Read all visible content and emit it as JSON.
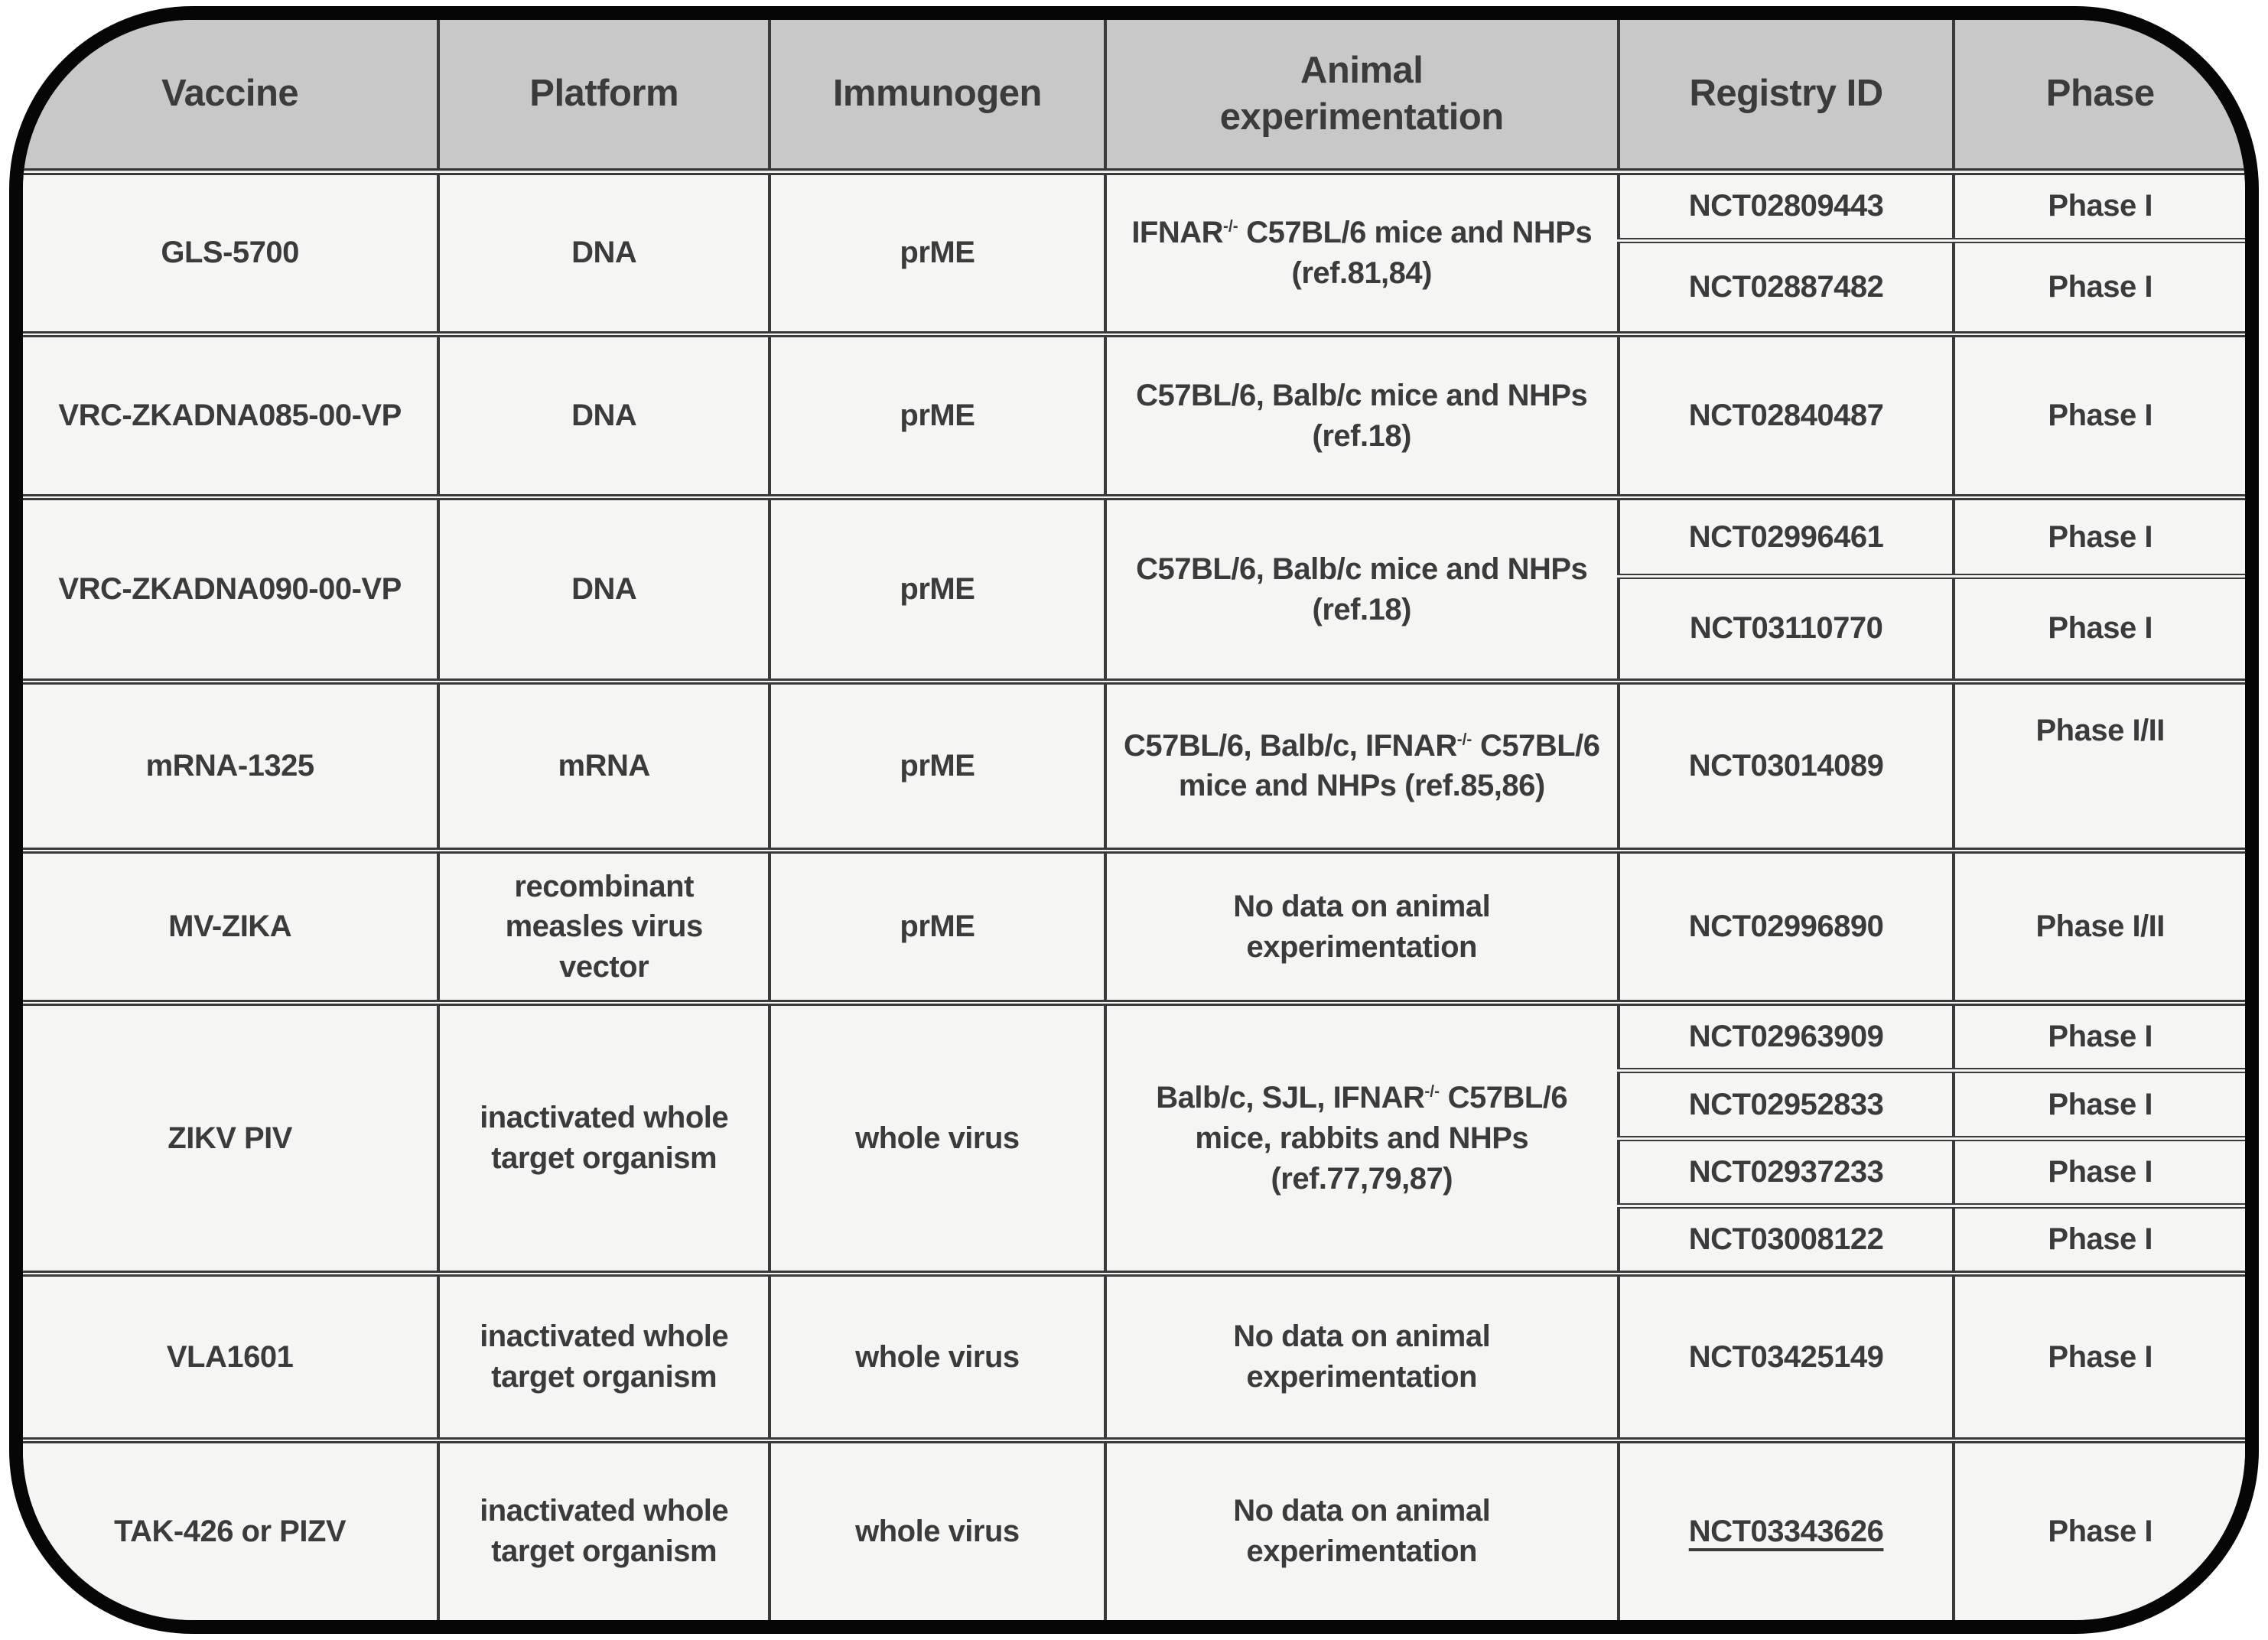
{
  "colors": {
    "frame_border": "#060606",
    "header_bg": "#c8c8c8",
    "body_bg": "#f5f5f4",
    "text": "#3b3b3b",
    "grid_line": "#3a3a3a"
  },
  "table": {
    "columns": [
      "Vaccine",
      "Platform",
      "Immunogen",
      "Animal\nexperimentation",
      "Registry ID",
      "Phase"
    ],
    "rows": [
      {
        "vaccine": "GLS-5700",
        "platform": "DNA",
        "immunogen": "prME",
        "animal": {
          "pre": "IFNAR",
          "sup": "-/-",
          "post": " C57BL/6 mice and NHPs (ref.81,84)"
        },
        "trials": [
          {
            "registry_id": "NCT02809443",
            "phase": "Phase I",
            "underlined": false
          },
          {
            "registry_id": "NCT02887482",
            "phase": "Phase I",
            "underlined": false
          }
        ]
      },
      {
        "vaccine": "VRC-ZKADNA085-00-VP",
        "platform": "DNA",
        "immunogen": "prME",
        "animal": {
          "pre": "C57BL/6, Balb/c mice and NHPs (ref.18)",
          "sup": "",
          "post": ""
        },
        "trials": [
          {
            "registry_id": "NCT02840487",
            "phase": "Phase I",
            "underlined": false
          }
        ]
      },
      {
        "vaccine": "VRC-ZKADNA090-00-VP",
        "platform": "DNA",
        "immunogen": "prME",
        "animal": {
          "pre": "C57BL/6, Balb/c mice and NHPs (ref.18)",
          "sup": "",
          "post": ""
        },
        "trials": [
          {
            "registry_id": "NCT02996461",
            "phase": "Phase I",
            "underlined": false
          },
          {
            "registry_id": "NCT03110770",
            "phase": "Phase I",
            "underlined": false
          }
        ]
      },
      {
        "vaccine": "mRNA-1325",
        "platform": "mRNA",
        "immunogen": "prME",
        "animal": {
          "pre": "C57BL/6, Balb/c, IFNAR",
          "sup": "-/-",
          "post": " C57BL/6 mice and NHPs (ref.85,86)"
        },
        "trials": [
          {
            "registry_id": "NCT03014089",
            "phase": "Phase I/II",
            "underlined": false
          }
        ]
      },
      {
        "vaccine": "MV-ZIKA",
        "platform": "recombinant measles virus vector",
        "immunogen": "prME",
        "animal": {
          "pre": "No data on animal experimentation",
          "sup": "",
          "post": ""
        },
        "trials": [
          {
            "registry_id": "NCT02996890",
            "phase": "Phase I/II",
            "underlined": false
          }
        ]
      },
      {
        "vaccine": "ZIKV PIV",
        "platform": "inactivated whole target organism",
        "immunogen": "whole virus",
        "animal": {
          "pre": "Balb/c, SJL, IFNAR",
          "sup": "-/-",
          "post": " C57BL/6 mice, rabbits and NHPs (ref.77,79,87)"
        },
        "trials": [
          {
            "registry_id": "NCT02963909",
            "phase": "Phase I",
            "underlined": false
          },
          {
            "registry_id": "NCT02952833",
            "phase": "Phase I",
            "underlined": false
          },
          {
            "registry_id": "NCT02937233",
            "phase": "Phase I",
            "underlined": false
          },
          {
            "registry_id": "NCT03008122",
            "phase": "Phase I",
            "underlined": false
          }
        ]
      },
      {
        "vaccine": "VLA1601",
        "platform": "inactivated whole target organism",
        "immunogen": "whole virus",
        "animal": {
          "pre": "No data on animal experimentation",
          "sup": "",
          "post": ""
        },
        "trials": [
          {
            "registry_id": "NCT03425149",
            "phase": "Phase I",
            "underlined": false
          }
        ]
      },
      {
        "vaccine": "TAK-426 or PIZV",
        "platform": "inactivated whole target organism",
        "immunogen": "whole virus",
        "animal": {
          "pre": "No data on animal experimentation",
          "sup": "",
          "post": ""
        },
        "trials": [
          {
            "registry_id": "NCT03343626",
            "phase": "Phase I",
            "underlined": true
          }
        ]
      }
    ]
  }
}
